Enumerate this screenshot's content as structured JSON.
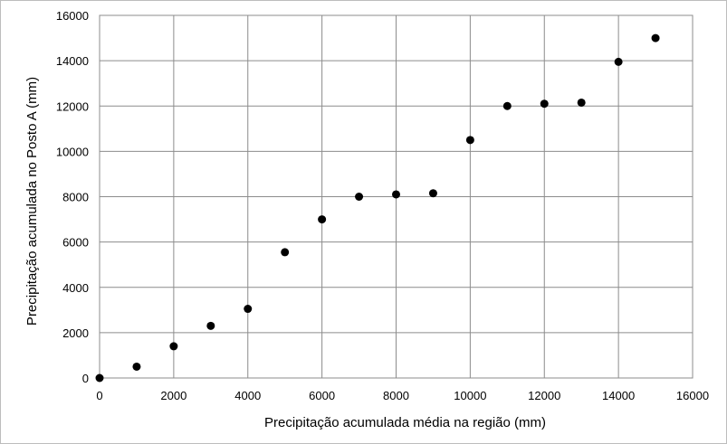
{
  "chart_data": {
    "type": "scatter",
    "title": "",
    "xlabel": "Precipitação acumulada média na região (mm)",
    "ylabel": "Precipitação acumulada no  Posto A (mm)",
    "xlim": [
      0,
      16000
    ],
    "ylim": [
      0,
      16000
    ],
    "x_ticks": [
      0,
      2000,
      4000,
      6000,
      8000,
      10000,
      12000,
      14000,
      16000
    ],
    "y_ticks": [
      0,
      2000,
      4000,
      6000,
      8000,
      10000,
      12000,
      14000,
      16000
    ],
    "grid": true,
    "legend": "none",
    "marker_color": "#000000",
    "grid_color": "#8c8c8c",
    "points": [
      {
        "x": 0,
        "y": 0
      },
      {
        "x": 1000,
        "y": 500
      },
      {
        "x": 2000,
        "y": 1400
      },
      {
        "x": 3000,
        "y": 2300
      },
      {
        "x": 4000,
        "y": 3050
      },
      {
        "x": 5000,
        "y": 5550
      },
      {
        "x": 6000,
        "y": 7000
      },
      {
        "x": 7000,
        "y": 8000
      },
      {
        "x": 8000,
        "y": 8100
      },
      {
        "x": 9000,
        "y": 8150
      },
      {
        "x": 10000,
        "y": 10500
      },
      {
        "x": 11000,
        "y": 12000
      },
      {
        "x": 12000,
        "y": 12100
      },
      {
        "x": 13000,
        "y": 12150
      },
      {
        "x": 14000,
        "y": 13950
      },
      {
        "x": 15000,
        "y": 15000
      }
    ]
  }
}
